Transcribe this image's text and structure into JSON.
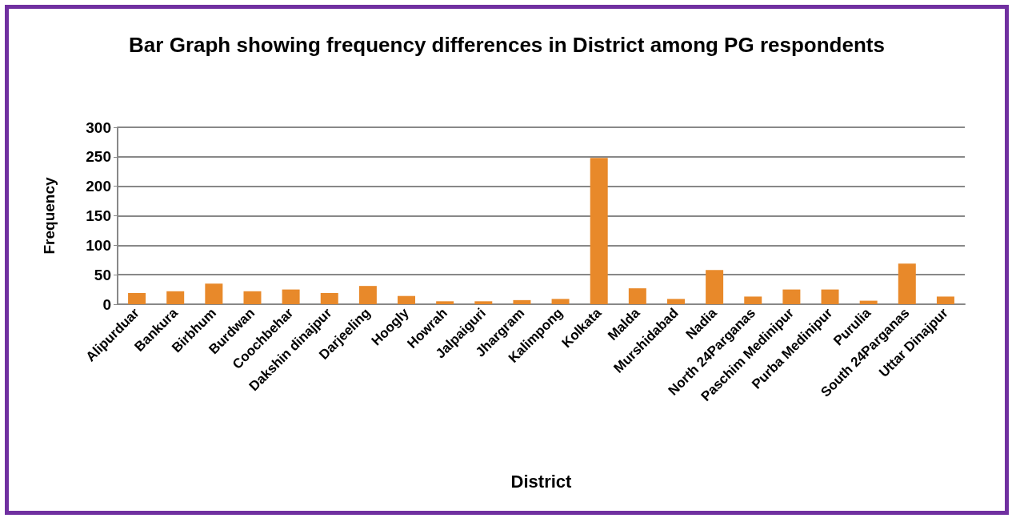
{
  "chart_data": {
    "type": "bar",
    "title": "Bar Graph showing frequency differences in District among PG respondents",
    "xlabel": "District",
    "ylabel": "Frequency",
    "categories": [
      "Alipurduar",
      "Bankura",
      "Birbhum",
      "Burdwan",
      "Coochbehar",
      "Dakshin dinajpur",
      "Darjeeling",
      "Hoogly",
      "Howrah",
      "Jalpaiguri",
      "Jhargram",
      "Kalimpong",
      "Kolkata",
      "Malda",
      "Murshidabad",
      "Nadia",
      "North 24Parganas",
      "Paschim Medinipur",
      "Purba Medinipur",
      "Purulia",
      "South 24Parganas",
      "Uttar Dinajpur"
    ],
    "values": [
      19,
      22,
      35,
      22,
      25,
      19,
      31,
      14,
      5,
      5,
      7,
      9,
      248,
      27,
      9,
      58,
      13,
      25,
      25,
      6,
      69,
      13
    ],
    "color": "#e8892a",
    "ylim": [
      0,
      300
    ],
    "yticks": [
      0,
      50,
      100,
      150,
      200,
      250,
      300
    ],
    "grid": "y"
  }
}
